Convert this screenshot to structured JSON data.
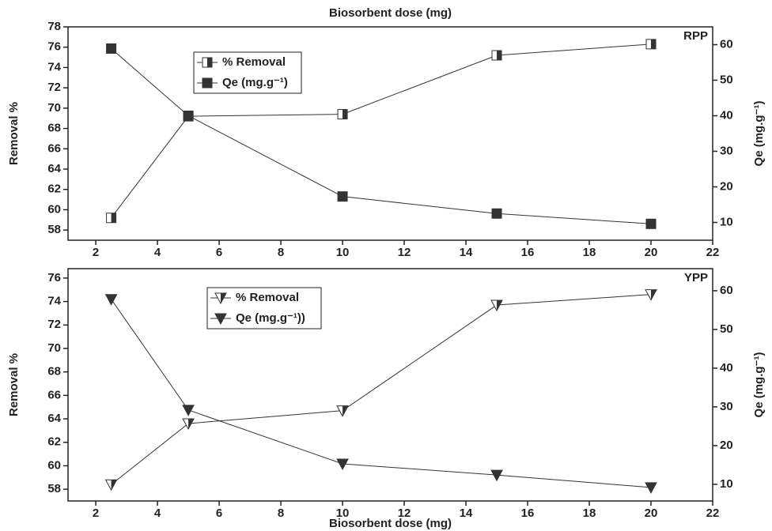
{
  "chart_data": [
    {
      "type": "line",
      "xlabel": "Biosorbent dose (mg)",
      "xlabel_position": "top",
      "annotation": "RPP",
      "ylabel": "Removal %",
      "y2label": "Qe (mg.g⁻¹)",
      "x": [
        2.5,
        5,
        10,
        15,
        20
      ],
      "xlim": [
        1.1,
        22
      ],
      "xticks": [
        2,
        4,
        6,
        8,
        10,
        12,
        14,
        16,
        18,
        20,
        22
      ],
      "ylim": [
        57,
        78
      ],
      "yticks": [
        58,
        60,
        62,
        64,
        66,
        68,
        70,
        72,
        74,
        76,
        78
      ],
      "y2lim": [
        5,
        65
      ],
      "y2ticks": [
        10,
        20,
        30,
        40,
        50,
        60
      ],
      "series": [
        {
          "name": "% Removal",
          "color": "#333333",
          "marker": "half-square",
          "values": [
            59.2,
            69.2,
            69.4,
            75.2,
            76.3
          ]
        },
        {
          "name": "Qe (mg.g⁻¹)",
          "color": "#333333",
          "marker": "square",
          "axis": "y2",
          "values": [
            58.9,
            40,
            17.3,
            12.5,
            9.6
          ]
        }
      ]
    },
    {
      "type": "line",
      "xlabel": "Biosorbent dose (mg)",
      "xlabel_position": "bottom",
      "annotation": "YPP",
      "ylabel": "Removal %",
      "y2label": "Qe (mg.g⁻¹)",
      "x": [
        2.5,
        5,
        10,
        15,
        20
      ],
      "xlim": [
        1.1,
        22
      ],
      "xticks": [
        2,
        4,
        6,
        8,
        10,
        12,
        14,
        16,
        18,
        20,
        22
      ],
      "ylim": [
        57,
        76.8
      ],
      "yticks": [
        58,
        60,
        62,
        64,
        66,
        68,
        70,
        72,
        74,
        76
      ],
      "y2lim": [
        5.7,
        65.7
      ],
      "y2ticks": [
        10,
        20,
        30,
        40,
        50,
        60
      ],
      "series": [
        {
          "name": "% Removal",
          "color": "#333333",
          "marker": "half-triangle-down",
          "values": [
            58.4,
            63.6,
            64.7,
            73.7,
            74.6
          ]
        },
        {
          "name": "Qe (mg.g⁻¹))",
          "color": "#333333",
          "marker": "triangle-down",
          "axis": "y2",
          "values": [
            57.8,
            29.2,
            15.3,
            12.4,
            9.2
          ]
        }
      ]
    }
  ]
}
